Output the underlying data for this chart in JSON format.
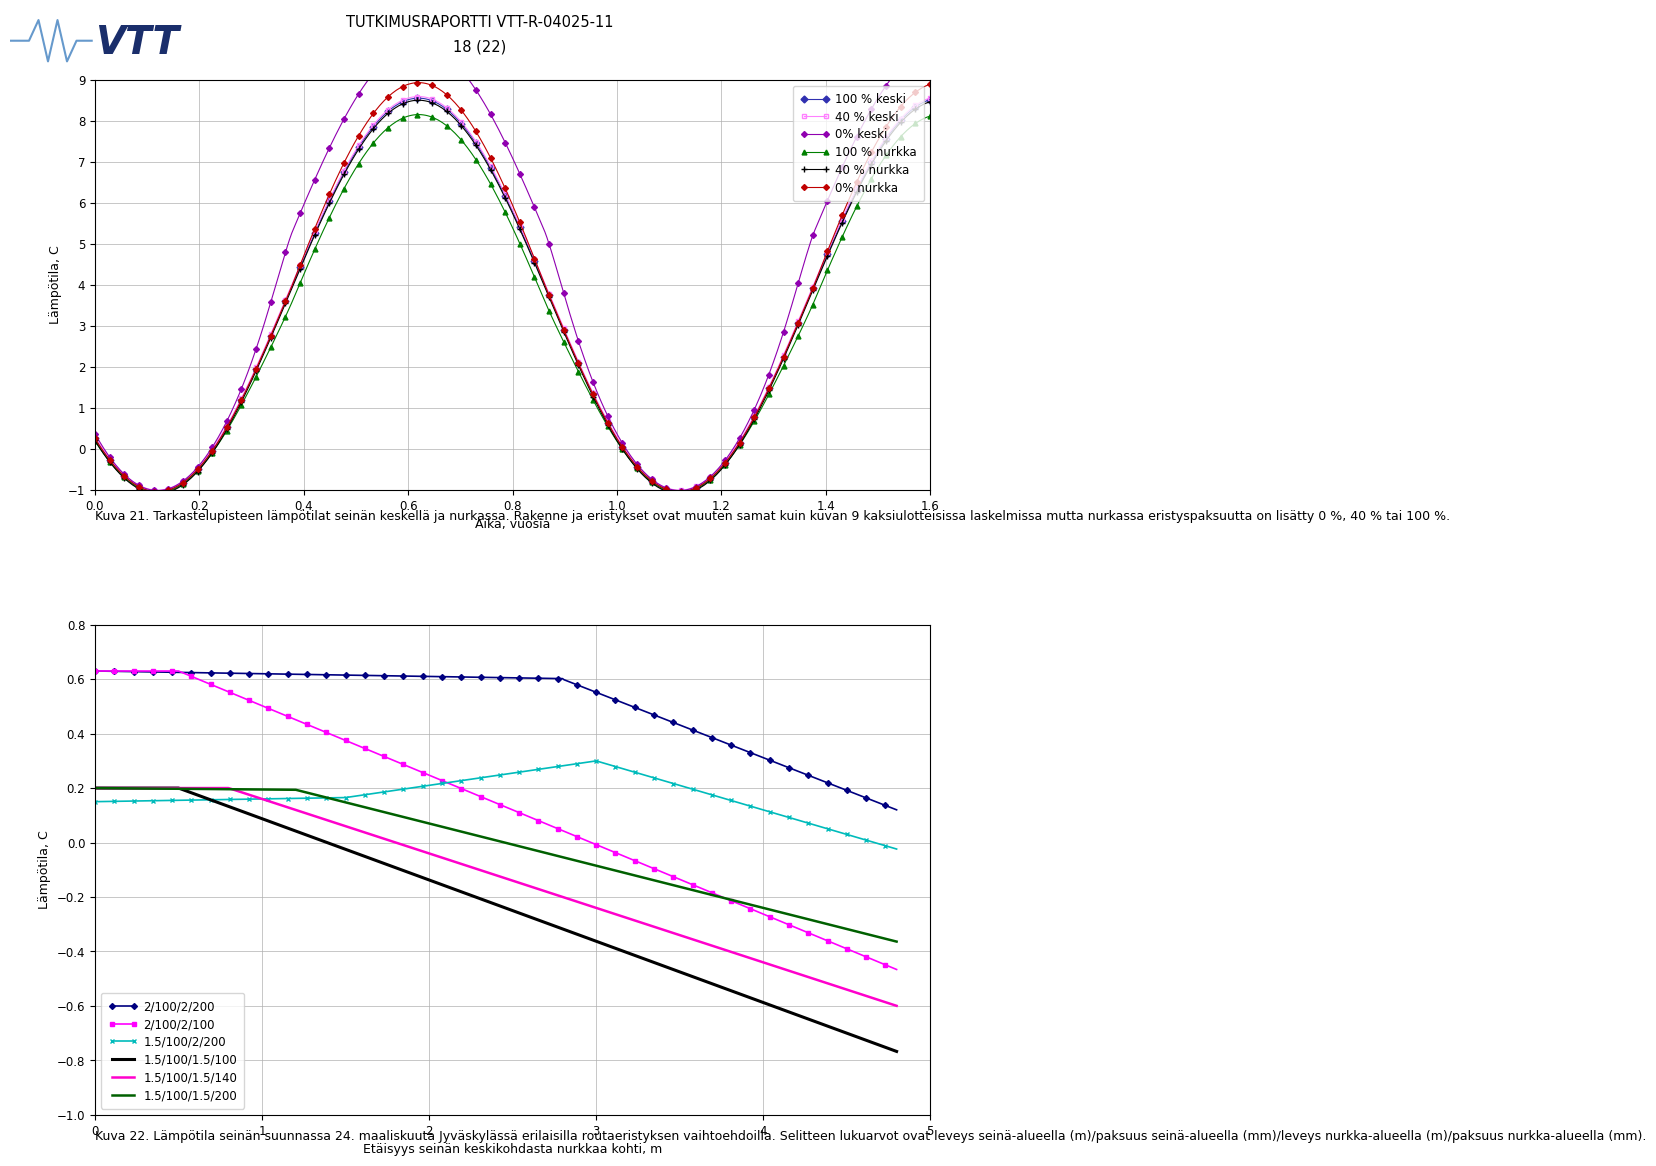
{
  "header_title": "TUTKIMUSRAPORTTI VTT-R-04025-11",
  "header_page": "18 (22)",
  "fig1_caption": "Kuva 21. Tarkastelupisteen lämpötilat seinän keskellä ja nurkassa. Rakenne ja eristykset ovat muuten samat kuin kuvan 9 kaksiulotteisissa laskelmissa mutta nurkassa eristyspaksuutta on lisätty 0 %, 40 % tai 100 %.",
  "fig2_caption": "Kuva 22. Lämpötila seinän suunnassa 24. maaliskuuta Jyväskylässä erilaisilla routaeristyksen vaihtoehdoilla. Selitteen lukuarvot ovat leveys seinä-alueella (m)/paksuus seinä-alueella (mm)/leveys nurkka-alueella (m)/paksuus nurkka-alueella (mm).",
  "chart1": {
    "ylabel": "Lämpötila, C",
    "xlabel": "Aika, vuosia",
    "ylim": [
      -1,
      9
    ],
    "xlim": [
      0,
      1.6
    ],
    "yticks": [
      -1,
      0,
      1,
      2,
      3,
      4,
      5,
      6,
      7,
      8,
      9
    ],
    "xticks": [
      0,
      0.2,
      0.4,
      0.6,
      0.8,
      1.0,
      1.2,
      1.4,
      1.6
    ],
    "series": [
      {
        "label": "100 % keski",
        "color": "#3030B0",
        "marker": "D",
        "markersize": 3.5,
        "linestyle": "-",
        "linewidth": 0.8,
        "markerfill": "#3030B0"
      },
      {
        "label": "40 % keski",
        "color": "#FF80FF",
        "marker": "s",
        "markersize": 3.5,
        "linestyle": "-",
        "linewidth": 0.8,
        "markerfill": "none"
      },
      {
        "label": "0% keski",
        "color": "#9000B0",
        "marker": "D",
        "markersize": 3.0,
        "linestyle": "-",
        "linewidth": 0.8,
        "markerfill": "#9000B0"
      },
      {
        "label": "100 % nurkka",
        "color": "#008000",
        "marker": "^",
        "markersize": 3.5,
        "linestyle": "-",
        "linewidth": 0.8,
        "markerfill": "#008000"
      },
      {
        "label": "40 % nurkka",
        "color": "#000000",
        "marker": "+",
        "markersize": 4.0,
        "linestyle": "-",
        "linewidth": 0.8,
        "markerfill": "#000000"
      },
      {
        "label": "0% nurkka",
        "color": "#C00000",
        "marker": "D",
        "markersize": 3.0,
        "linestyle": "-",
        "linewidth": 0.8,
        "markerfill": "#C00000"
      }
    ]
  },
  "chart2": {
    "ylabel": "Lämpötila, C",
    "xlabel": "Etäisyys seinän keskikohdasta nurkkaa kohti, m",
    "ylim": [
      -1,
      0.8
    ],
    "xlim": [
      0,
      5
    ],
    "yticks": [
      -1,
      -0.8,
      -0.6,
      -0.4,
      -0.2,
      0,
      0.2,
      0.4,
      0.6,
      0.8
    ],
    "xticks": [
      0,
      1,
      2,
      3,
      4,
      5
    ],
    "series": [
      {
        "label": "2/100/2/200",
        "color": "#000080",
        "marker": "D",
        "markersize": 3,
        "linewidth": 1.2
      },
      {
        "label": "2/100/2/100",
        "color": "#FF00FF",
        "marker": "s",
        "markersize": 3,
        "linewidth": 1.2
      },
      {
        "label": "1.5/100/2/200",
        "color": "#00BBBB",
        "marker": "x",
        "markersize": 3,
        "linewidth": 1.2
      },
      {
        "label": "1.5/100/1.5/100",
        "color": "#000000",
        "marker": "",
        "markersize": 0,
        "linewidth": 2.2
      },
      {
        "label": "1.5/100/1.5/140",
        "color": "#FF00CC",
        "marker": "",
        "markersize": 0,
        "linewidth": 1.8
      },
      {
        "label": "1.5/100/1.5/200",
        "color": "#006000",
        "marker": "",
        "markersize": 0,
        "linewidth": 1.8
      }
    ]
  }
}
